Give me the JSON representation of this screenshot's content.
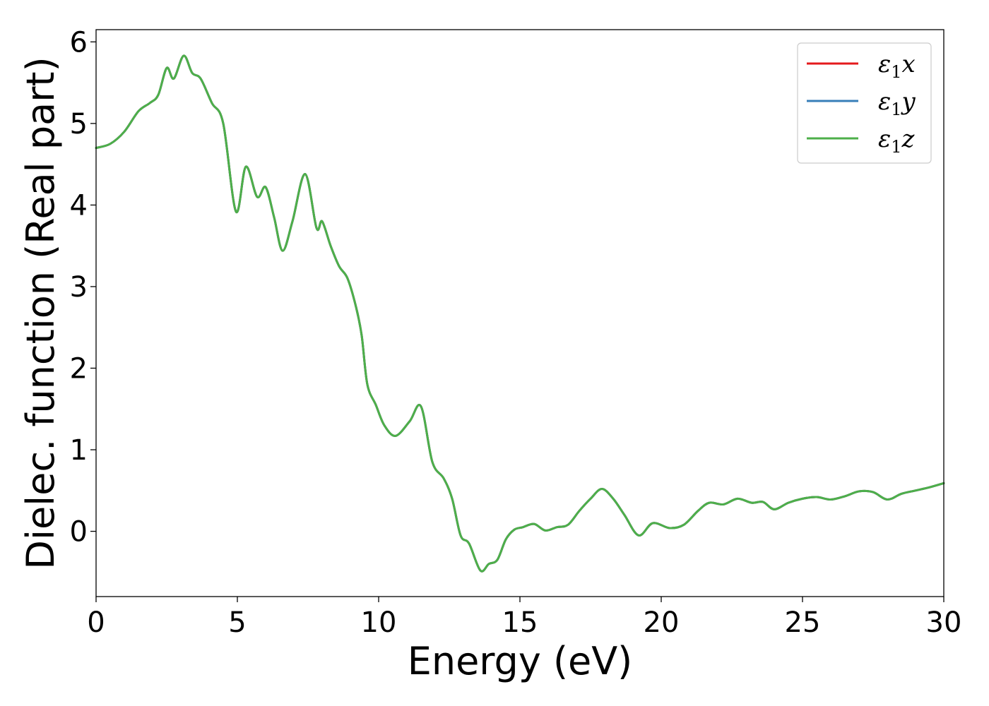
{
  "chart_data": {
    "type": "line",
    "title": "",
    "xlabel": "Energy (eV)",
    "ylabel": "Dielec. function (Real part)",
    "xlim": [
      0,
      30
    ],
    "ylim": [
      -0.8,
      6.15
    ],
    "xticks": [
      0,
      5,
      10,
      15,
      20,
      25,
      30
    ],
    "yticks": [
      0,
      1,
      2,
      3,
      4,
      5,
      6
    ],
    "xtick_labels": [
      "0",
      "5",
      "10",
      "15",
      "20",
      "25",
      "30"
    ],
    "ytick_labels": [
      "0",
      "1",
      "2",
      "3",
      "4",
      "5",
      "6"
    ],
    "grid": false,
    "legend_position": "top-right",
    "series": [
      {
        "name": "ε₁x",
        "legend_main": "ε",
        "legend_sub": "1",
        "legend_suffix": "x",
        "color": "#e41a1c",
        "x": [
          0,
          0.5,
          1,
          1.5,
          1.9,
          2.2,
          2.5,
          2.75,
          3.1,
          3.4,
          3.7,
          4.1,
          4.5,
          4.95,
          5.3,
          5.7,
          6.0,
          6.3,
          6.6,
          6.95,
          7.4,
          7.8,
          8.0,
          8.3,
          8.6,
          8.9,
          9.2,
          9.4,
          9.6,
          9.9,
          10.2,
          10.6,
          11.1,
          11.5,
          11.9,
          12.3,
          12.6,
          12.9,
          13.2,
          13.6,
          13.9,
          14.2,
          14.5,
          14.8,
          15.1,
          15.5,
          15.9,
          16.3,
          16.7,
          17.1,
          17.5,
          17.9,
          18.3,
          18.7,
          19.2,
          19.7,
          20.3,
          20.8,
          21.3,
          21.7,
          22.2,
          22.7,
          23.2,
          23.6,
          24.0,
          24.5,
          25.0,
          25.5,
          26.0,
          26.5,
          27.0,
          27.5,
          28.0,
          28.5,
          29.0,
          29.5,
          30.0
        ],
        "y": [
          4.7,
          4.75,
          4.9,
          5.15,
          5.25,
          5.35,
          5.68,
          5.55,
          5.83,
          5.62,
          5.55,
          5.25,
          5.0,
          3.92,
          4.47,
          4.1,
          4.22,
          3.85,
          3.44,
          3.8,
          4.38,
          3.72,
          3.8,
          3.5,
          3.25,
          3.1,
          2.75,
          2.4,
          1.8,
          1.55,
          1.3,
          1.17,
          1.35,
          1.53,
          0.85,
          0.65,
          0.4,
          -0.05,
          -0.15,
          -0.48,
          -0.4,
          -0.35,
          -0.1,
          0.02,
          0.05,
          0.09,
          0.01,
          0.05,
          0.08,
          0.25,
          0.4,
          0.52,
          0.4,
          0.2,
          -0.05,
          0.1,
          0.04,
          0.08,
          0.25,
          0.35,
          0.33,
          0.4,
          0.35,
          0.36,
          0.27,
          0.35,
          0.4,
          0.42,
          0.39,
          0.43,
          0.49,
          0.48,
          0.39,
          0.46,
          0.5,
          0.54,
          0.59
        ]
      },
      {
        "name": "ε₁y",
        "legend_main": "ε",
        "legend_sub": "1",
        "legend_suffix": "y",
        "color": "#377eb8",
        "x": [
          0,
          0.5,
          1,
          1.5,
          1.9,
          2.2,
          2.5,
          2.75,
          3.1,
          3.4,
          3.7,
          4.1,
          4.5,
          4.95,
          5.3,
          5.7,
          6.0,
          6.3,
          6.6,
          6.95,
          7.4,
          7.8,
          8.0,
          8.3,
          8.6,
          8.9,
          9.2,
          9.4,
          9.6,
          9.9,
          10.2,
          10.6,
          11.1,
          11.5,
          11.9,
          12.3,
          12.6,
          12.9,
          13.2,
          13.6,
          13.9,
          14.2,
          14.5,
          14.8,
          15.1,
          15.5,
          15.9,
          16.3,
          16.7,
          17.1,
          17.5,
          17.9,
          18.3,
          18.7,
          19.2,
          19.7,
          20.3,
          20.8,
          21.3,
          21.7,
          22.2,
          22.7,
          23.2,
          23.6,
          24.0,
          24.5,
          25.0,
          25.5,
          26.0,
          26.5,
          27.0,
          27.5,
          28.0,
          28.5,
          29.0,
          29.5,
          30.0
        ],
        "y": [
          4.7,
          4.75,
          4.9,
          5.15,
          5.25,
          5.35,
          5.68,
          5.55,
          5.83,
          5.62,
          5.55,
          5.25,
          5.0,
          3.92,
          4.47,
          4.1,
          4.22,
          3.85,
          3.44,
          3.8,
          4.38,
          3.72,
          3.8,
          3.5,
          3.25,
          3.1,
          2.75,
          2.4,
          1.8,
          1.55,
          1.3,
          1.17,
          1.35,
          1.53,
          0.85,
          0.65,
          0.4,
          -0.05,
          -0.15,
          -0.48,
          -0.4,
          -0.35,
          -0.1,
          0.02,
          0.05,
          0.09,
          0.01,
          0.05,
          0.08,
          0.25,
          0.4,
          0.52,
          0.4,
          0.2,
          -0.05,
          0.1,
          0.04,
          0.08,
          0.25,
          0.35,
          0.33,
          0.4,
          0.35,
          0.36,
          0.27,
          0.35,
          0.4,
          0.42,
          0.39,
          0.43,
          0.49,
          0.48,
          0.39,
          0.46,
          0.5,
          0.54,
          0.59
        ]
      },
      {
        "name": "ε₁z",
        "legend_main": "ε",
        "legend_sub": "1",
        "legend_suffix": "z",
        "color": "#4daf4a",
        "x": [
          0,
          0.5,
          1,
          1.5,
          1.9,
          2.2,
          2.5,
          2.75,
          3.1,
          3.4,
          3.7,
          4.1,
          4.5,
          4.95,
          5.3,
          5.7,
          6.0,
          6.3,
          6.6,
          6.95,
          7.4,
          7.8,
          8.0,
          8.3,
          8.6,
          8.9,
          9.2,
          9.4,
          9.6,
          9.9,
          10.2,
          10.6,
          11.1,
          11.5,
          11.9,
          12.3,
          12.6,
          12.9,
          13.2,
          13.6,
          13.9,
          14.2,
          14.5,
          14.8,
          15.1,
          15.5,
          15.9,
          16.3,
          16.7,
          17.1,
          17.5,
          17.9,
          18.3,
          18.7,
          19.2,
          19.7,
          20.3,
          20.8,
          21.3,
          21.7,
          22.2,
          22.7,
          23.2,
          23.6,
          24.0,
          24.5,
          25.0,
          25.5,
          26.0,
          26.5,
          27.0,
          27.5,
          28.0,
          28.5,
          29.0,
          29.5,
          30.0
        ],
        "y": [
          4.7,
          4.75,
          4.9,
          5.15,
          5.25,
          5.35,
          5.68,
          5.55,
          5.83,
          5.62,
          5.55,
          5.25,
          5.0,
          3.92,
          4.47,
          4.1,
          4.22,
          3.85,
          3.44,
          3.8,
          4.38,
          3.72,
          3.8,
          3.5,
          3.25,
          3.1,
          2.75,
          2.4,
          1.8,
          1.55,
          1.3,
          1.17,
          1.35,
          1.53,
          0.85,
          0.65,
          0.4,
          -0.05,
          -0.15,
          -0.48,
          -0.4,
          -0.35,
          -0.1,
          0.02,
          0.05,
          0.09,
          0.01,
          0.05,
          0.08,
          0.25,
          0.4,
          0.52,
          0.4,
          0.2,
          -0.05,
          0.1,
          0.04,
          0.08,
          0.25,
          0.35,
          0.33,
          0.4,
          0.35,
          0.36,
          0.27,
          0.35,
          0.4,
          0.42,
          0.39,
          0.43,
          0.49,
          0.48,
          0.39,
          0.46,
          0.5,
          0.54,
          0.59
        ]
      }
    ]
  }
}
